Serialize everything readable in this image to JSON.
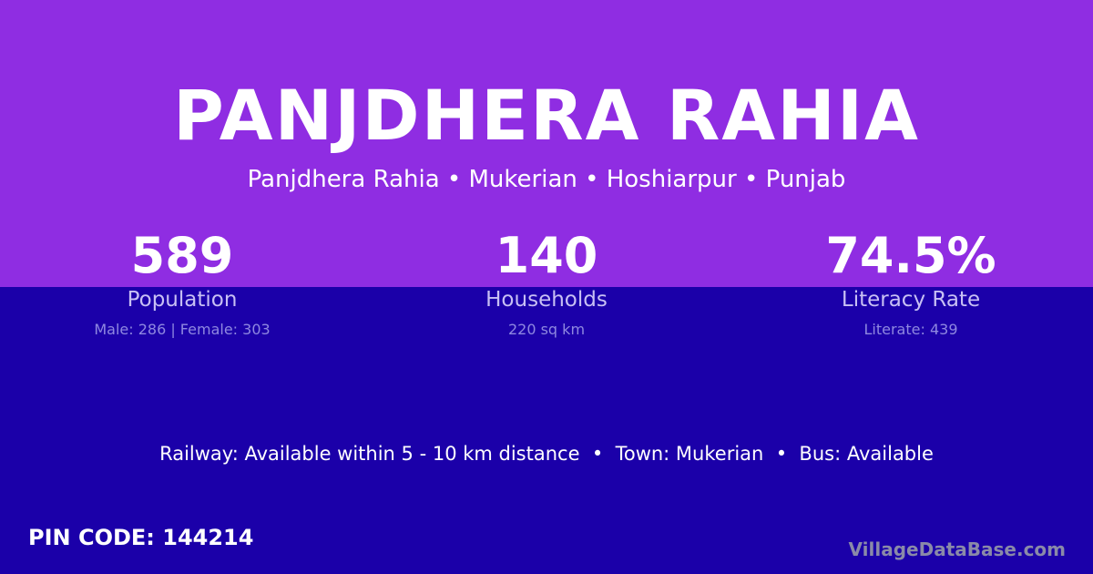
{
  "colors": {
    "header_bg": "#8f2de2",
    "body_bg": "#1b00a9",
    "brand": "#8a8aa8"
  },
  "title": "PANJDHERA RAHIA",
  "breadcrumb": "Panjdhera Rahia • Mukerian • Hoshiarpur • Punjab",
  "stats": [
    {
      "value": "589",
      "label": "Population",
      "sub": "Male: 286 | Female: 303"
    },
    {
      "value": "140",
      "label": "Households",
      "sub": "220 sq km"
    },
    {
      "value": "74.5%",
      "label": "Literacy Rate",
      "sub": "Literate: 439"
    }
  ],
  "info": "Railway: Available within 5 - 10 km distance  •  Town: Mukerian  •  Bus: Available",
  "pin": "PIN CODE: 144214",
  "brand": "VillageDataBase.com"
}
